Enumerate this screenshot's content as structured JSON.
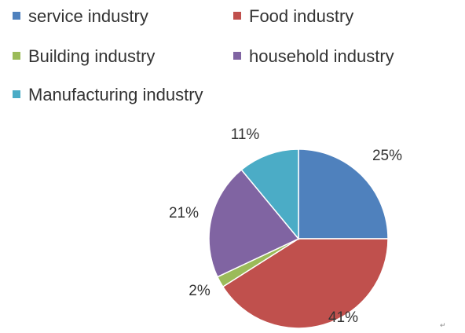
{
  "chart_data": {
    "type": "pie",
    "title": "",
    "start_angle_deg": 90,
    "direction": "clockwise",
    "legend_position": "top",
    "slices": [
      {
        "label": "service industry",
        "value": 25,
        "display": "25%",
        "color": "#4F81BD"
      },
      {
        "label": "Food industry",
        "value": 41,
        "display": "41%",
        "color": "#C0504D"
      },
      {
        "label": "Building industry",
        "value": 2,
        "display": "2%",
        "color": "#9BBB59"
      },
      {
        "label": "household industry",
        "value": 21,
        "display": "21%",
        "color": "#8064A2"
      },
      {
        "label": "Manufacturing industry",
        "value": 11,
        "display": "11%",
        "color": "#4BACC6"
      }
    ]
  },
  "corner_mark": "↵"
}
